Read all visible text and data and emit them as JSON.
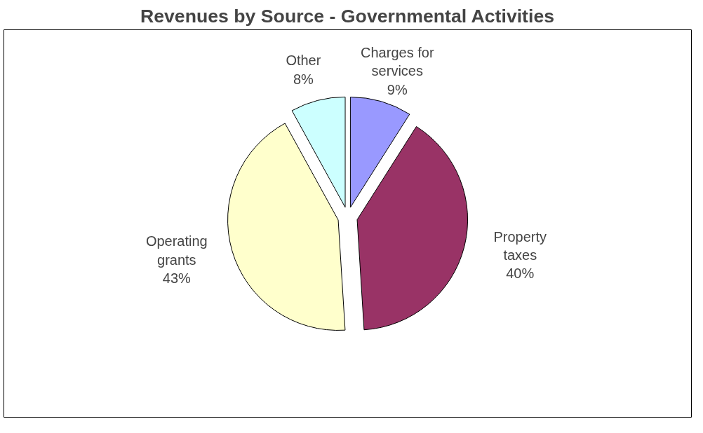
{
  "chart_data": {
    "type": "pie",
    "title": "Revenues by Source - Governmental Activities",
    "categories": [
      "Charges for services",
      "Property taxes",
      "Operating grants",
      "Other"
    ],
    "values": [
      9,
      40,
      43,
      8
    ],
    "colors": [
      "#9999ff",
      "#993366",
      "#ffffcc",
      "#ccffff"
    ],
    "value_labels": [
      "9%",
      "40%",
      "43%",
      "8%"
    ]
  }
}
